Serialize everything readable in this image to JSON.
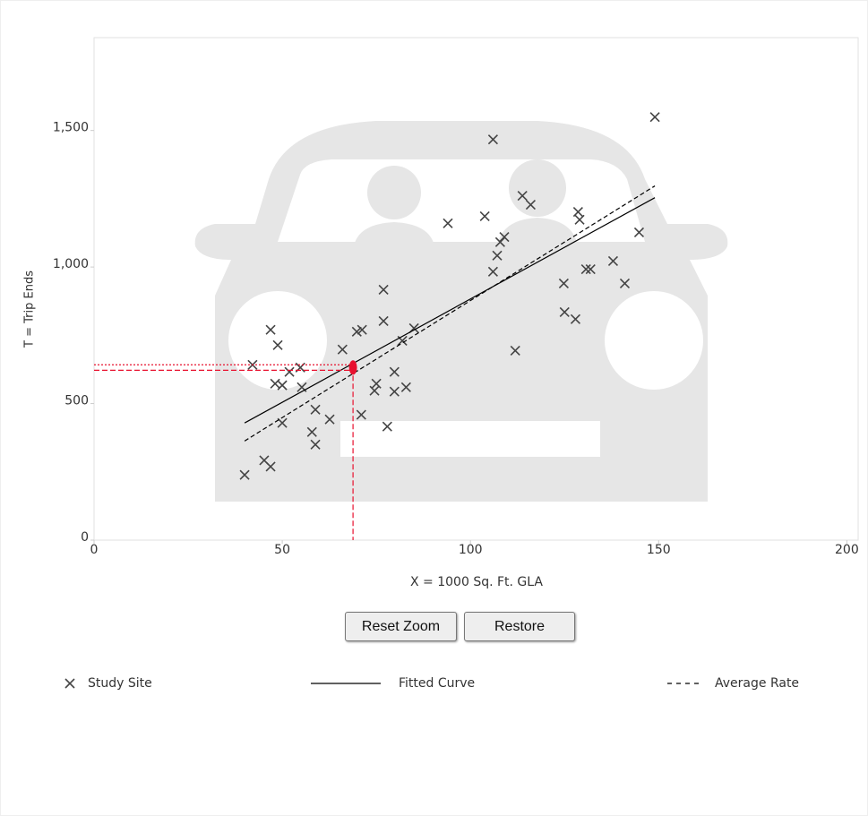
{
  "chart_data": {
    "type": "scatter",
    "x_label": "X = 1000 Sq. Ft. GLA",
    "y_label": "T = Trip Ends",
    "xlim": [
      0,
      203
    ],
    "ylim": [
      0,
      1840
    ],
    "xticks": [
      0,
      50,
      100,
      150,
      200
    ],
    "yticks": [
      0,
      500,
      {
        "value": 1000,
        "label": "1,000"
      },
      {
        "value": 1500,
        "label": "1,500"
      }
    ],
    "series": [
      {
        "name": "Study Site",
        "color": "#444444",
        "marker": "x",
        "x": [
          40,
          42.1,
          45.2,
          46.9,
          46.9,
          48.8,
          48.1,
          50,
          50,
          51.9,
          54.8,
          55.2,
          58.8,
          57.9,
          58.8,
          62.6,
          66,
          69.8,
          71.2,
          71,
          74.5,
          75,
          76.9,
          76.9,
          77.9,
          79.8,
          79.8,
          82.9,
          81.9,
          85,
          94,
          103.8,
          106,
          106,
          107.1,
          107.9,
          109,
          111.9,
          113.8,
          116,
          124.8,
          125,
          127.9,
          128.6,
          129,
          130.7,
          131.9,
          137.9,
          141,
          144.8,
          149
        ],
        "values": [
          239,
          642,
          292,
          269,
          770,
          714,
          573,
          567,
          429,
          616,
          632,
          560,
          478,
          396,
          350,
          442,
          698,
          763,
          770,
          459,
          547,
          573,
          802,
          917,
          416,
          616,
          544,
          560,
          730,
          776,
          1160,
          1186,
          1467,
          983,
          1042,
          1091,
          1110,
          694,
          1261,
          1228,
          940,
          835,
          809,
          1202,
          1173,
          992,
          992,
          1022,
          940,
          1127,
          1549
        ]
      },
      {
        "name": "Fitted Curve",
        "color": "#000000",
        "marker": "line",
        "x": [
          40,
          149
        ],
        "values": [
          429,
          1254
        ]
      },
      {
        "name": "Average Rate",
        "color": "#000000",
        "marker": "dash",
        "x": [
          40,
          149
        ],
        "values": [
          363,
          1297
        ]
      }
    ],
    "highlight": {
      "x": 68.8,
      "y": 632,
      "y_upper": 642,
      "y_lower": 622,
      "color": "#e8102e"
    },
    "buttons": [
      "Reset Zoom",
      "Restore"
    ]
  }
}
